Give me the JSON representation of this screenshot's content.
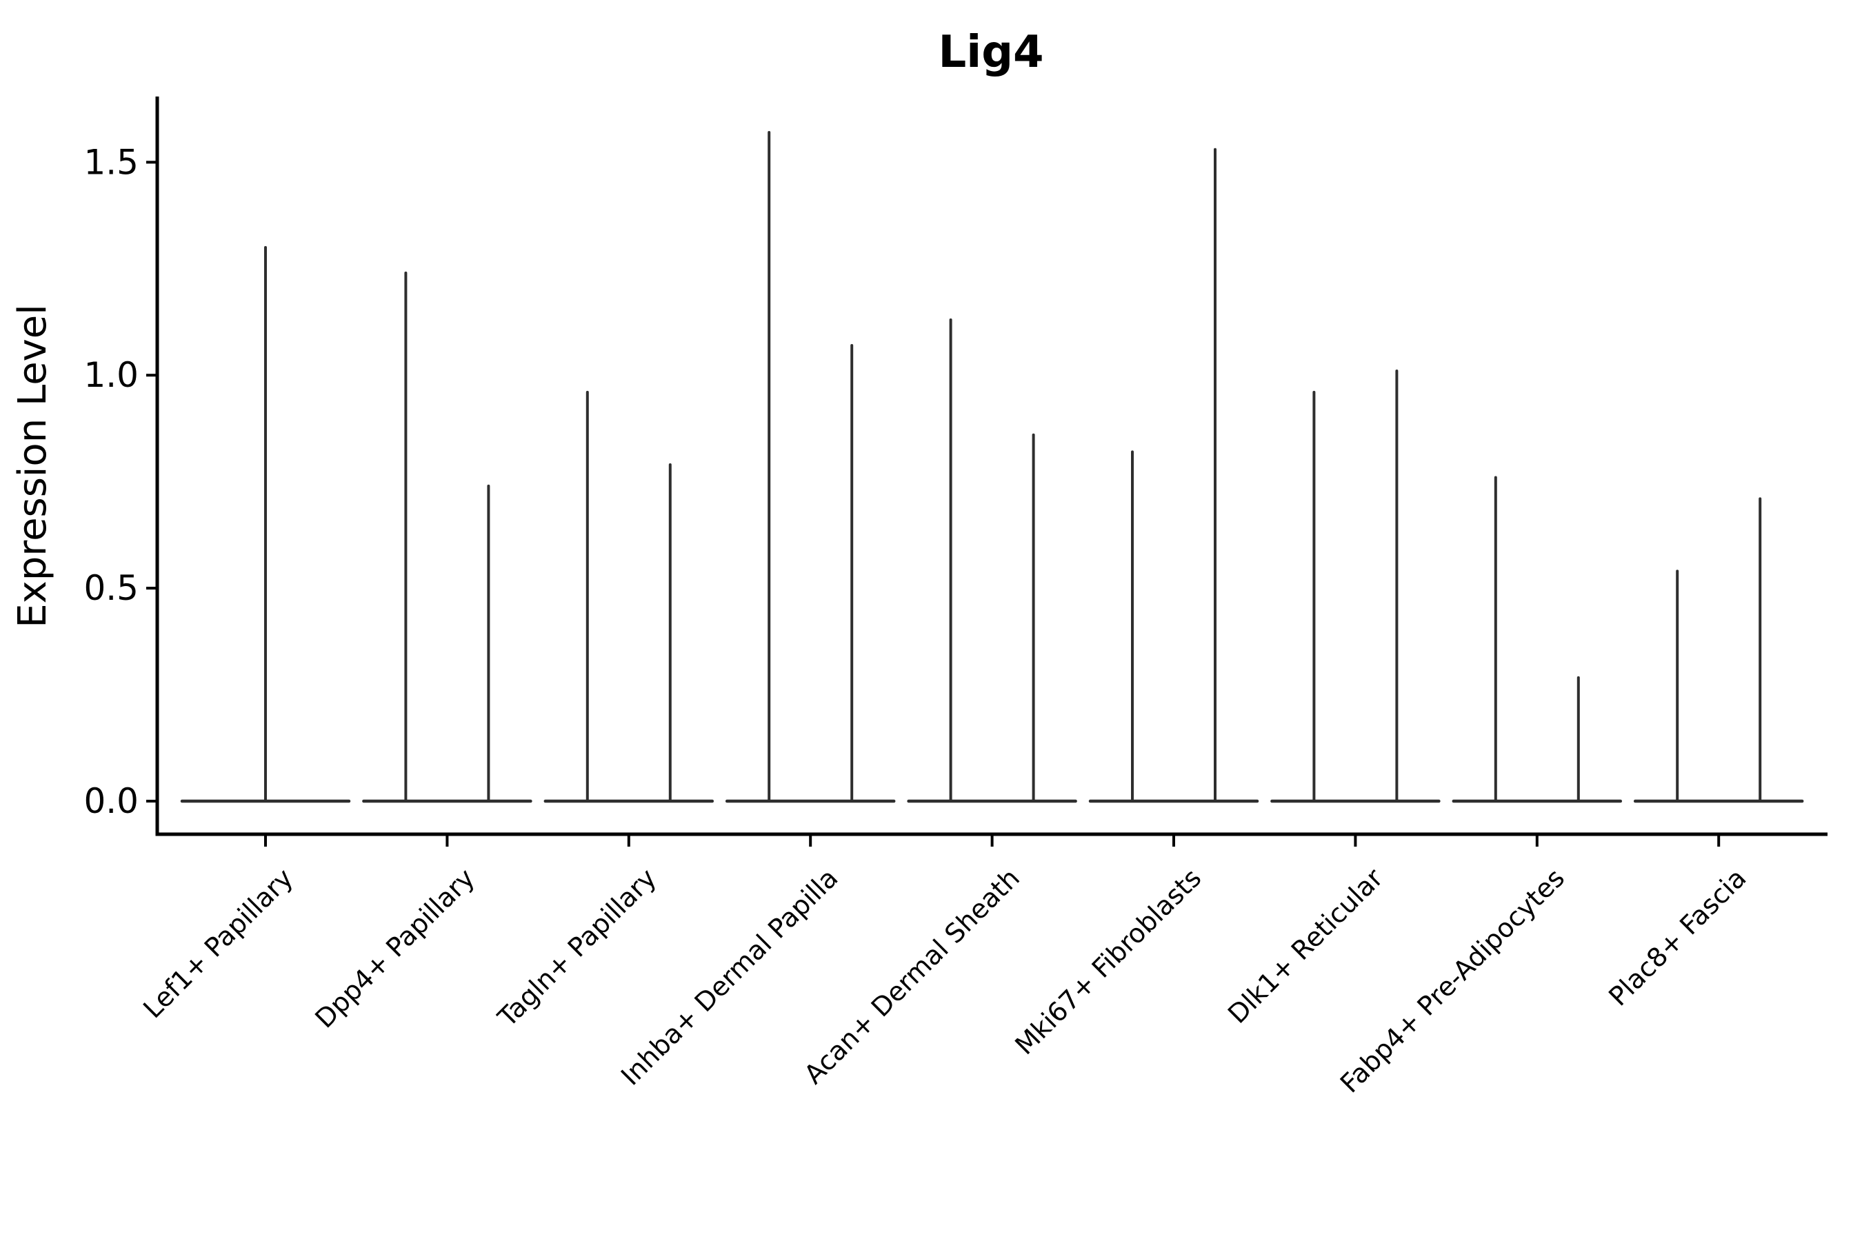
{
  "figure": {
    "title": "Lig4",
    "ylabel": "Expression Level"
  },
  "chart_data": {
    "type": "violin",
    "title": "Lig4",
    "xlabel": "",
    "ylabel": "Expression Level",
    "grid": false,
    "legend": "none",
    "background": "#ffffff",
    "ylim": [
      -0.08,
      1.65
    ],
    "ytick_labels": [
      "0.0",
      "0.5",
      "1.0",
      "1.5"
    ],
    "ytick_values": [
      0.0,
      0.5,
      1.0,
      1.5
    ],
    "categories": [
      "Lef1+ Papillary",
      "Dpp4+ Papillary",
      "Tagln+ Papillary",
      "Inhba+ Dermal Papilla",
      "Acan+ Dermal Sheath",
      "Mki67+ Fibroblasts",
      "Dlk1+ Reticular",
      "Fabp4+ Pre-Adipocytes",
      "Plac8+ Fascia"
    ],
    "violins": [
      {
        "category": "Lef1+ Papillary",
        "spike_max_values": [
          1.3
        ]
      },
      {
        "category": "Dpp4+ Papillary",
        "spike_max_values": [
          1.24,
          0.74
        ]
      },
      {
        "category": "Tagln+ Papillary",
        "spike_max_values": [
          0.96,
          0.79
        ]
      },
      {
        "category": "Inhba+ Dermal Papilla",
        "spike_max_values": [
          1.57,
          1.07
        ]
      },
      {
        "category": "Acan+ Dermal Sheath",
        "spike_max_values": [
          1.13,
          0.86
        ]
      },
      {
        "category": "Mki67+ Fibroblasts",
        "spike_max_values": [
          0.82,
          1.53
        ]
      },
      {
        "category": "Dlk1+ Reticular",
        "spike_max_values": [
          0.96,
          1.01
        ]
      },
      {
        "category": "Fabp4+ Pre-Adipocytes",
        "spike_max_values": [
          0.76,
          0.29
        ]
      },
      {
        "category": "Plac8+ Fascia",
        "spike_max_values": [
          0.54,
          0.71
        ]
      }
    ],
    "baseline_value": 0.0,
    "colors": {
      "violin": "#2e2e2e",
      "axis": "#000000",
      "text": "#000000",
      "background": "#ffffff"
    }
  }
}
